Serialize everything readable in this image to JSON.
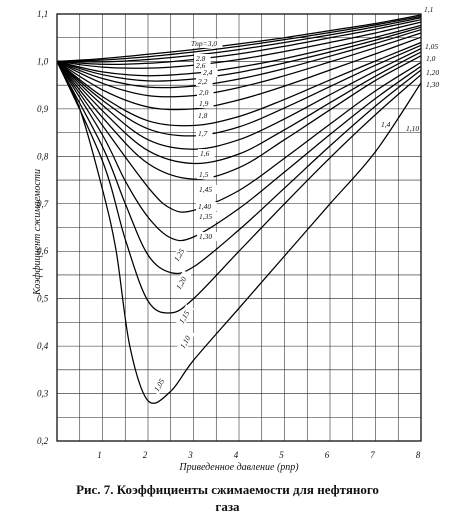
{
  "caption_line1": "Рис. 7. Коэффициенты сжимаемости для нефтяного",
  "caption_line2": "газа",
  "chart_data": {
    "type": "line",
    "title": "",
    "xlabel": "Приведенное давление (pпр)",
    "ylabel": "Коэффициент сжимаемости",
    "xlim": [
      0,
      8
    ],
    "ylim": [
      0.2,
      1.1
    ],
    "x_ticks": [
      "1",
      "2",
      "3",
      "4",
      "5",
      "6",
      "7",
      "8"
    ],
    "y_ticks": [
      "0,2",
      "0,3",
      "0,4",
      "0,5",
      "0,6",
      "0,7",
      "0,8",
      "0,9",
      "1,0",
      "1,1"
    ],
    "grid": true,
    "series": [
      {
        "name": "Tпр=3,0",
        "x": [
          0,
          1,
          2,
          3,
          4,
          5,
          6,
          7,
          8
        ],
        "y": [
          1.0,
          1.006,
          1.015,
          1.025,
          1.037,
          1.05,
          1.065,
          1.08,
          1.098
        ]
      },
      {
        "name": "2,8",
        "x": [
          0,
          1,
          2,
          3,
          4,
          5,
          6,
          7,
          8
        ],
        "y": [
          1.0,
          1.003,
          1.01,
          1.02,
          1.032,
          1.046,
          1.061,
          1.077,
          1.095
        ]
      },
      {
        "name": "2,6",
        "x": [
          0,
          1,
          2,
          3,
          4,
          5,
          6,
          7,
          8
        ],
        "y": [
          1.0,
          0.999,
          1.004,
          1.013,
          1.025,
          1.04,
          1.056,
          1.073,
          1.092
        ]
      },
      {
        "name": "2,4",
        "x": [
          0,
          1,
          2,
          3,
          4,
          5,
          6,
          7,
          8
        ],
        "y": [
          1.0,
          0.994,
          0.996,
          1.004,
          1.016,
          1.032,
          1.05,
          1.068,
          1.088
        ]
      },
      {
        "name": "2,2",
        "x": [
          0,
          1,
          2,
          3,
          4,
          5,
          6,
          7,
          8
        ],
        "y": [
          1.0,
          0.988,
          0.986,
          0.992,
          1.004,
          1.021,
          1.04,
          1.06,
          1.083
        ]
      },
      {
        "name": "2,0",
        "x": [
          0,
          1,
          2,
          3,
          4,
          5,
          6,
          7,
          8
        ],
        "y": [
          1.0,
          0.978,
          0.97,
          0.975,
          0.988,
          1.006,
          1.028,
          1.051,
          1.076
        ]
      },
      {
        "name": "1,9",
        "x": [
          0,
          1,
          2,
          3,
          4,
          5,
          6,
          7,
          8
        ],
        "y": [
          1.0,
          0.972,
          0.959,
          0.963,
          0.977,
          0.997,
          1.02,
          1.045,
          1.072
        ]
      },
      {
        "name": "1,8",
        "x": [
          0,
          1,
          2,
          3,
          4,
          5,
          6,
          7,
          8
        ],
        "y": [
          1.0,
          0.964,
          0.946,
          0.948,
          0.963,
          0.985,
          1.011,
          1.038,
          1.067
        ]
      },
      {
        "name": "1,7",
        "x": [
          0,
          1,
          2,
          3,
          4,
          5,
          6,
          7,
          8
        ],
        "y": [
          1.0,
          0.954,
          0.928,
          0.928,
          0.945,
          0.97,
          0.999,
          1.029,
          1.06
        ]
      },
      {
        "name": "1,6",
        "x": [
          0,
          1,
          2,
          3,
          4,
          5,
          6,
          7,
          8
        ],
        "y": [
          1.0,
          0.94,
          0.904,
          0.9,
          0.919,
          0.948,
          0.982,
          1.016,
          1.051
        ]
      },
      {
        "name": "1,5",
        "x": [
          0,
          1,
          2,
          3,
          4,
          5,
          6,
          7,
          8
        ],
        "y": [
          1.0,
          0.926,
          0.875,
          0.865,
          0.884,
          0.92,
          0.961,
          1.001,
          1.04
        ]
      },
      {
        "name": "1,45",
        "x": [
          0,
          1,
          2,
          3,
          4,
          5,
          6,
          7,
          8
        ],
        "y": [
          1.0,
          0.918,
          0.858,
          0.843,
          0.862,
          0.902,
          0.947,
          0.992,
          1.034
        ]
      },
      {
        "name": "1,40",
        "x": [
          0,
          1,
          2,
          3,
          4,
          5,
          6,
          7,
          8
        ],
        "y": [
          1.0,
          0.908,
          0.835,
          0.815,
          0.835,
          0.879,
          0.93,
          0.98,
          1.027
        ]
      },
      {
        "name": "1,35",
        "x": [
          0,
          1,
          2,
          3,
          4,
          5,
          6,
          7,
          8
        ],
        "y": [
          1.0,
          0.896,
          0.812,
          0.785,
          0.805,
          0.856,
          0.913,
          0.969,
          1.02
        ]
      },
      {
        "name": "1,30",
        "x": [
          0,
          1,
          2,
          3,
          4,
          5,
          6,
          7,
          8
        ],
        "y": [
          1.0,
          0.882,
          0.785,
          0.752,
          0.776,
          0.835,
          0.898,
          0.96,
          1.012
        ]
      },
      {
        "name": "1,25",
        "x": [
          0,
          1,
          2,
          2.5,
          3,
          4,
          5,
          6,
          7,
          8
        ],
        "y": [
          1.0,
          0.865,
          0.735,
          0.69,
          0.686,
          0.728,
          0.796,
          0.868,
          0.938,
          0.998
        ]
      },
      {
        "name": "1,20",
        "x": [
          0,
          1,
          1.5,
          2,
          2.5,
          3,
          4,
          5,
          6,
          7,
          8
        ],
        "y": [
          1.0,
          0.845,
          0.748,
          0.672,
          0.628,
          0.63,
          0.69,
          0.767,
          0.846,
          0.922,
          0.99
        ]
      },
      {
        "name": "1,15",
        "x": [
          0,
          1,
          1.5,
          2,
          2.5,
          3,
          4,
          5,
          6,
          7,
          8
        ],
        "y": [
          1.0,
          0.82,
          0.7,
          0.592,
          0.555,
          0.567,
          0.645,
          0.733,
          0.822,
          0.906,
          0.982
        ]
      },
      {
        "name": "1,10",
        "x": [
          0,
          1,
          1.5,
          2,
          2.5,
          3,
          4,
          5,
          6,
          7,
          8
        ],
        "y": [
          1.0,
          0.79,
          0.625,
          0.495,
          0.47,
          0.5,
          0.6,
          0.7,
          0.797,
          0.888,
          0.972
        ]
      },
      {
        "name": "1,05",
        "x": [
          0,
          0.5,
          1,
          1.3,
          1.6,
          2,
          2.5,
          3,
          4,
          5,
          6,
          7,
          8
        ],
        "y": [
          1.0,
          0.9,
          0.73,
          0.6,
          0.4,
          0.285,
          0.305,
          0.37,
          0.48,
          0.59,
          0.7,
          0.81,
          0.955
        ]
      }
    ],
    "curve_labels_left": [
      "Tпр=3,0",
      "2,8",
      "2,6",
      "2,4",
      "2,2",
      "2,0",
      "1,9",
      "1,8",
      "1,7",
      "1,6",
      "1,5",
      "1,45",
      "1,40",
      "1,35",
      "1,30",
      "1,25",
      "1,20",
      "1,15",
      "1,10",
      "1,05"
    ],
    "curve_labels_right": [
      "1,1",
      "1,05",
      "1,0",
      "1,20",
      "1,30",
      "1,10",
      "1,4"
    ]
  }
}
